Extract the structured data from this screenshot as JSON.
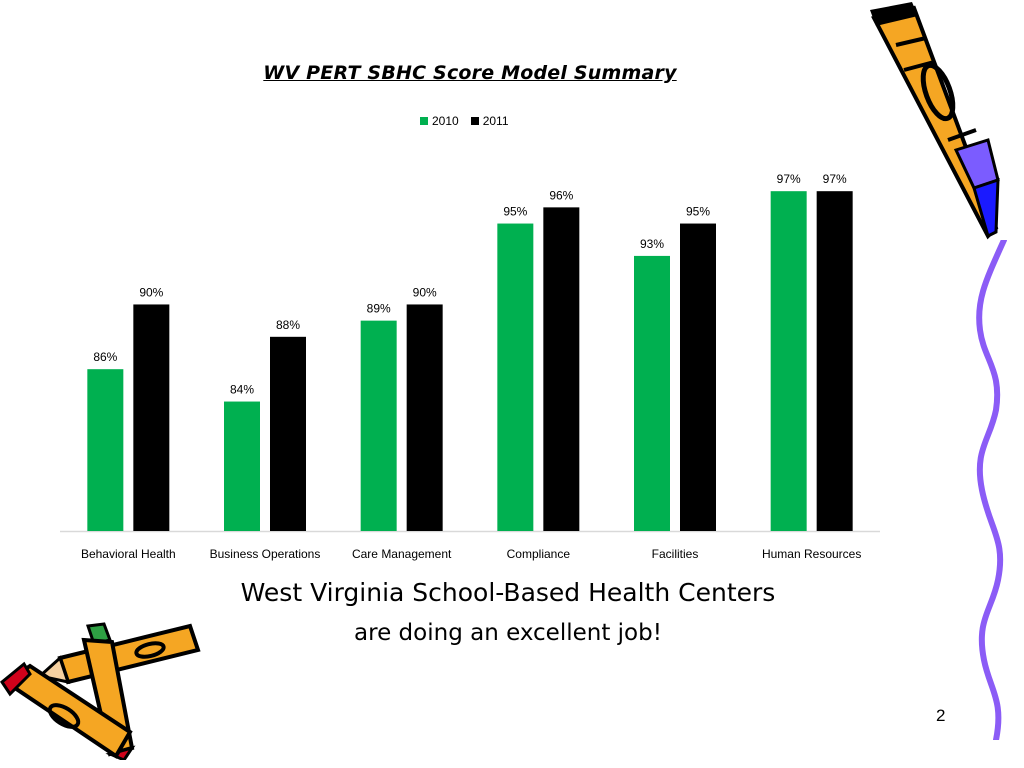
{
  "slide": {
    "subtitle_line1": "West Virginia School-Based Health Centers",
    "subtitle_line2": "are doing an excellent job!",
    "slide_number": "2"
  },
  "chart_data": {
    "type": "bar",
    "title": "WV PERT SBHC Score Model Summary",
    "categories": [
      "Behavioral Health",
      "Business Operations",
      "Care Management",
      "Compliance",
      "Facilities",
      "Human Resources"
    ],
    "series": [
      {
        "name": "2010",
        "color": "#00b050",
        "values": [
          86,
          84,
          89,
          95,
          93,
          97
        ]
      },
      {
        "name": "2011",
        "color": "#000000",
        "values": [
          90,
          88,
          90,
          96,
          95,
          97
        ]
      }
    ],
    "value_suffix": "%",
    "ylim": [
      76,
      98
    ],
    "grid": false,
    "legend_position": "top-center"
  },
  "clipart": {
    "pencil_top_right": "pencil-icon",
    "squiggle_right": "squiggle-line-icon",
    "pencils_bottom_left": "crossed-pencils-icon"
  }
}
